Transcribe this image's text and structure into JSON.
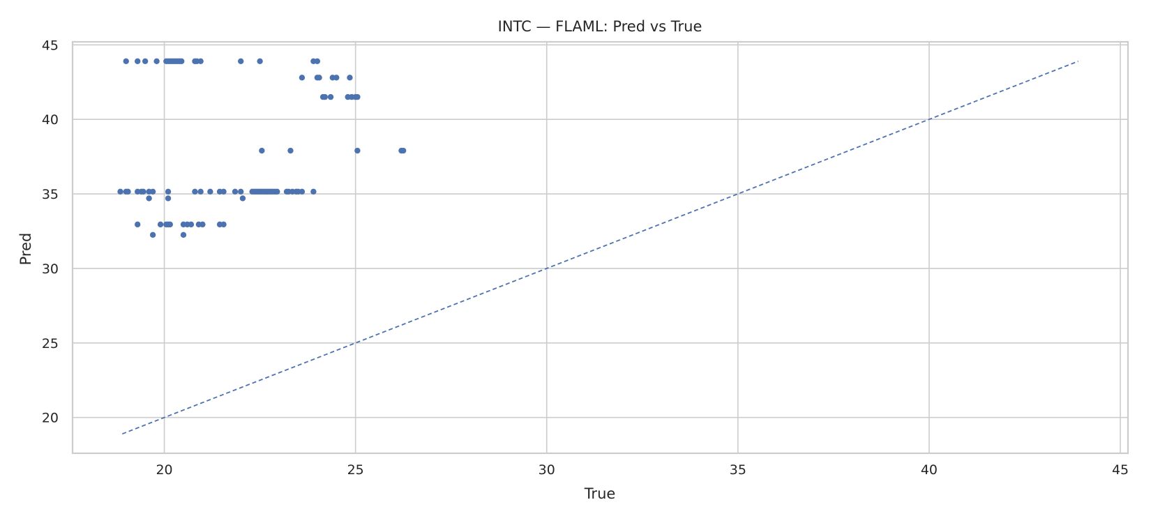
{
  "chart_data": {
    "type": "scatter",
    "title": "INTC — FLAML: Pred vs True",
    "xlabel": "True",
    "ylabel": "Pred",
    "xlim": [
      17.6,
      45.2
    ],
    "ylim": [
      17.6,
      45.2
    ],
    "xticks": [
      20,
      25,
      30,
      35,
      40,
      45
    ],
    "yticks": [
      20,
      25,
      30,
      35,
      40,
      45
    ],
    "grid": true,
    "series": [
      {
        "color": "#4c72b0",
        "points": [
          [
            19.0,
            43.9
          ],
          [
            19.3,
            43.9
          ],
          [
            19.5,
            43.9
          ],
          [
            19.8,
            43.9
          ],
          [
            20.05,
            43.9
          ],
          [
            20.1,
            43.9
          ],
          [
            20.15,
            43.9
          ],
          [
            20.2,
            43.9
          ],
          [
            20.25,
            43.9
          ],
          [
            20.3,
            43.9
          ],
          [
            20.35,
            43.9
          ],
          [
            20.4,
            43.9
          ],
          [
            20.45,
            43.9
          ],
          [
            20.8,
            43.9
          ],
          [
            20.85,
            43.9
          ],
          [
            20.95,
            43.9
          ],
          [
            22.0,
            43.9
          ],
          [
            22.5,
            43.9
          ],
          [
            23.9,
            43.9
          ],
          [
            24.0,
            43.9
          ],
          [
            23.6,
            42.8
          ],
          [
            24.0,
            42.8
          ],
          [
            24.05,
            42.8
          ],
          [
            24.4,
            42.8
          ],
          [
            24.5,
            42.8
          ],
          [
            24.85,
            42.8
          ],
          [
            24.15,
            41.5
          ],
          [
            24.2,
            41.5
          ],
          [
            24.35,
            41.5
          ],
          [
            24.8,
            41.5
          ],
          [
            24.9,
            41.5
          ],
          [
            25.0,
            41.5
          ],
          [
            25.05,
            41.5
          ],
          [
            22.55,
            37.9
          ],
          [
            23.3,
            37.9
          ],
          [
            25.05,
            37.9
          ],
          [
            26.2,
            37.9
          ],
          [
            26.25,
            37.9
          ],
          [
            18.85,
            35.15
          ],
          [
            19.0,
            35.15
          ],
          [
            19.05,
            35.15
          ],
          [
            19.3,
            35.15
          ],
          [
            19.4,
            35.15
          ],
          [
            19.45,
            35.15
          ],
          [
            19.6,
            35.15
          ],
          [
            19.7,
            35.15
          ],
          [
            20.1,
            35.15
          ],
          [
            20.8,
            35.15
          ],
          [
            20.95,
            35.15
          ],
          [
            21.2,
            35.15
          ],
          [
            21.45,
            35.15
          ],
          [
            21.55,
            35.15
          ],
          [
            21.85,
            35.15
          ],
          [
            22.0,
            35.15
          ],
          [
            22.3,
            35.15
          ],
          [
            22.35,
            35.15
          ],
          [
            22.4,
            35.15
          ],
          [
            22.45,
            35.15
          ],
          [
            22.5,
            35.15
          ],
          [
            22.55,
            35.15
          ],
          [
            22.6,
            35.15
          ],
          [
            22.65,
            35.15
          ],
          [
            22.7,
            35.15
          ],
          [
            22.75,
            35.15
          ],
          [
            22.8,
            35.15
          ],
          [
            22.85,
            35.15
          ],
          [
            22.9,
            35.15
          ],
          [
            22.95,
            35.15
          ],
          [
            23.2,
            35.15
          ],
          [
            23.25,
            35.15
          ],
          [
            23.35,
            35.15
          ],
          [
            23.45,
            35.15
          ],
          [
            23.5,
            35.15
          ],
          [
            23.6,
            35.15
          ],
          [
            23.9,
            35.15
          ],
          [
            19.6,
            34.7
          ],
          [
            20.1,
            34.7
          ],
          [
            22.05,
            34.7
          ],
          [
            19.3,
            32.95
          ],
          [
            19.9,
            32.95
          ],
          [
            20.05,
            32.95
          ],
          [
            20.1,
            32.95
          ],
          [
            20.15,
            32.95
          ],
          [
            20.5,
            32.95
          ],
          [
            20.6,
            32.95
          ],
          [
            20.7,
            32.95
          ],
          [
            20.9,
            32.95
          ],
          [
            21.0,
            32.95
          ],
          [
            21.45,
            32.95
          ],
          [
            21.55,
            32.95
          ],
          [
            19.7,
            32.25
          ],
          [
            20.5,
            32.25
          ]
        ]
      }
    ],
    "reference_line": {
      "style": "dashed",
      "color": "#4c72b0",
      "from": [
        18.9,
        18.9
      ],
      "to": [
        43.9,
        43.9
      ]
    }
  }
}
